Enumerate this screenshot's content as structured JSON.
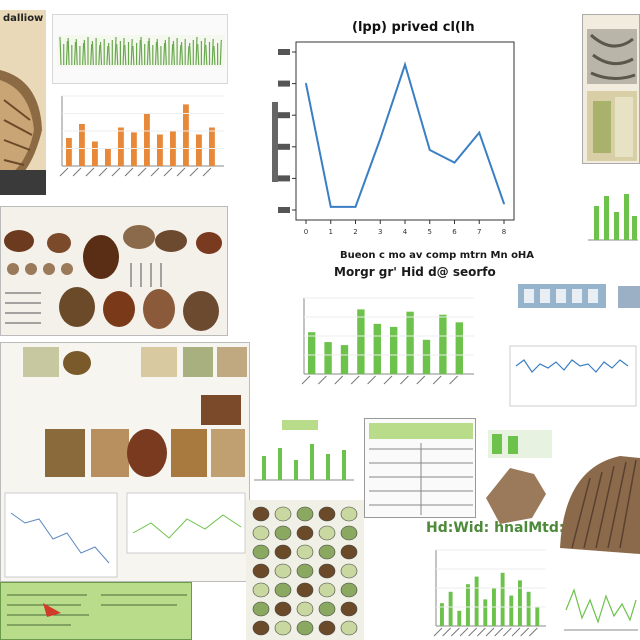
{
  "collage": {
    "top_left_caption": "dalliow",
    "main_chart_title": "(lpp) prived cl(lh",
    "main_chart_xlabel": "Bueon c mo av comp mtrn Mn oHA",
    "main_chart_subtitle": "Morgr gr' Hid d@ seorfo",
    "green_banner": "Hd:Wid: hnalMtd:Pid",
    "colors": {
      "line": "#3a7fc4",
      "orange_bar": "#e8893a",
      "green_bar": "#6cc24a",
      "brown": "#7a4a2a",
      "panel_green": "#b8dc8a"
    }
  },
  "chart_data": {
    "type": "line",
    "x": [
      0,
      1,
      2,
      3,
      4,
      5,
      6,
      7,
      8
    ],
    "y": [
      0.8,
      0.02,
      0.02,
      0.45,
      0.92,
      0.38,
      0.3,
      0.49,
      0.04
    ],
    "ylim": [
      0,
      1
    ],
    "title": "(lpp) prived cl(lh",
    "xlabel": "Bueon c mo av comp mtrn Mn oHA",
    "ylabel": ""
  },
  "orange_chart": {
    "values": [
      40,
      60,
      35,
      25,
      55,
      48,
      75,
      45,
      50,
      88,
      45,
      55
    ]
  },
  "green_chart": {
    "values": [
      55,
      42,
      38,
      85,
      66,
      62,
      82,
      45,
      78,
      68
    ]
  },
  "green_chart_small": {
    "values": [
      30,
      45,
      20,
      55,
      65,
      35,
      50,
      70,
      40,
      60,
      45,
      25
    ]
  }
}
